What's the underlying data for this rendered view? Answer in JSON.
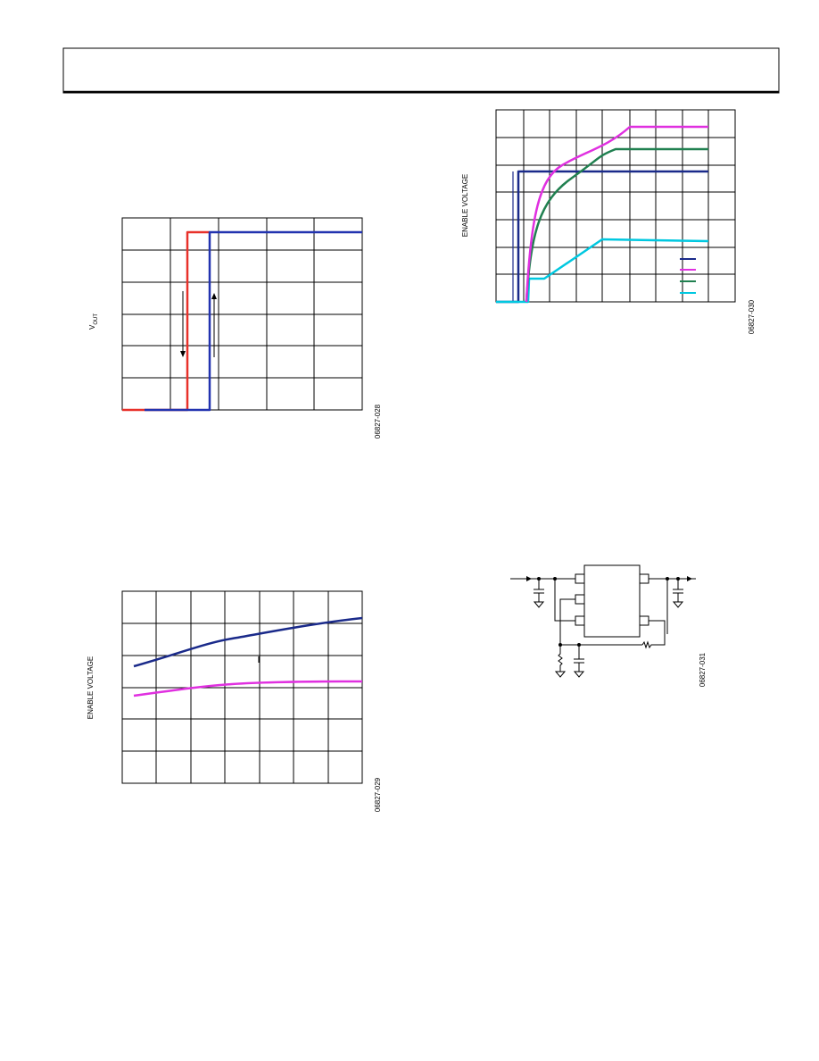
{
  "figures": [
    {
      "y_label": "V",
      "y_label_sub": "OUT",
      "code": "06827-028"
    },
    {
      "y_label": "ENABLE VOLTAGE",
      "code": "06827-029"
    },
    {
      "y_label": "ENABLE VOLTAGE",
      "code": "06827-030"
    }
  ],
  "circuit": {
    "code": "06827-031"
  }
}
